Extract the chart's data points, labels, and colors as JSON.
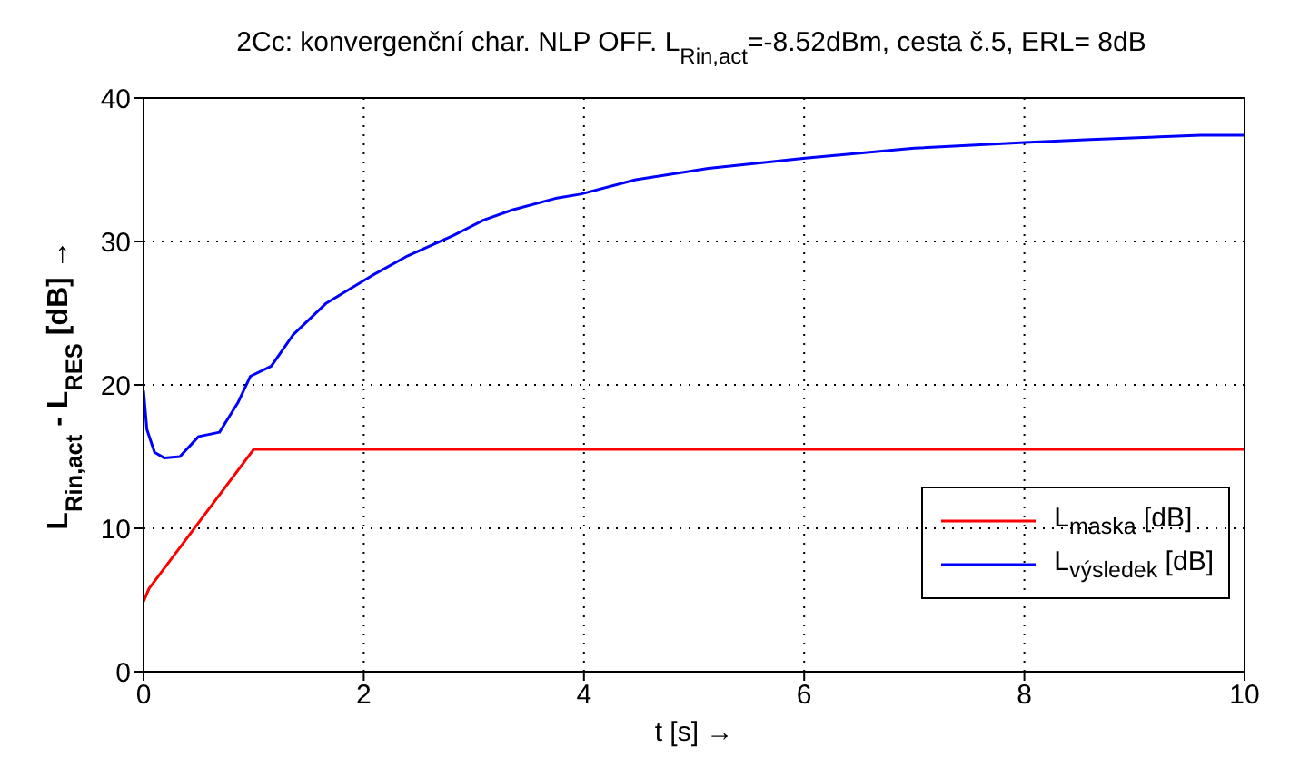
{
  "chart_data": {
    "type": "line",
    "title": "2Cc: konvergenční char. NLP OFF. L$_{Rin,act}$=-8.52dBm, cesta č.5, ERL= 8dB",
    "xlabel": "t [s] →",
    "ylabel": "L$_{Rin,act}$ - L$_{RES}$ [dB] →",
    "xlim": [
      0,
      10
    ],
    "xticks": [
      0,
      2,
      4,
      6,
      8,
      10
    ],
    "ylim": [
      0,
      40
    ],
    "yticks": [
      0,
      10,
      20,
      30,
      40
    ],
    "grid": true,
    "legend": "bottom right",
    "marker": "none",
    "line_style": "solid",
    "series": [
      {
        "name": "L$_{maska}$ [dB]",
        "color": "#ff0000",
        "x": [
          0,
          0.05,
          1,
          10
        ],
        "values": [
          4.9,
          5.8,
          15.5,
          15.5
        ]
      },
      {
        "name": "L$_{výsledek}$ [dB]",
        "color": "#0000ff",
        "x": [
          0,
          0.03,
          0.1,
          0.19,
          0.33,
          0.5,
          0.69,
          0.86,
          0.97,
          1.16,
          1.36,
          1.66,
          2.07,
          2.4,
          2.81,
          3.09,
          3.35,
          3.74,
          3.97,
          4.47,
          5.13,
          6.01,
          7.0,
          8.0,
          8.6,
          9.6,
          10
        ],
        "values": [
          19.6,
          16.9,
          15.3,
          14.9,
          15.0,
          16.4,
          16.7,
          18.8,
          20.6,
          21.3,
          23.5,
          25.7,
          27.6,
          29.0,
          30.4,
          31.5,
          32.2,
          33.0,
          33.3,
          34.3,
          35.1,
          35.8,
          36.5,
          36.9,
          37.1,
          37.4,
          37.4
        ]
      }
    ]
  }
}
